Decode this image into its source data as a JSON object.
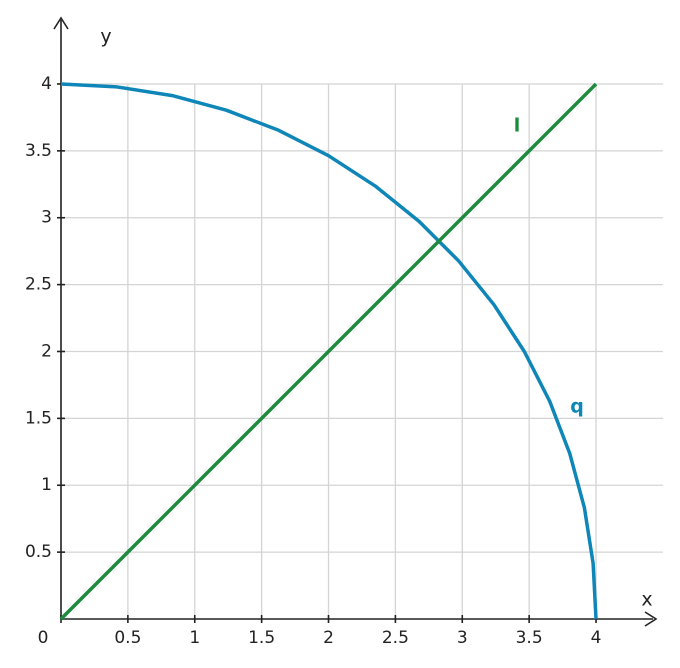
{
  "chart_data": {
    "type": "line",
    "xlabel": "x",
    "ylabel": "y",
    "xlim": [
      0,
      4.5
    ],
    "ylim": [
      0,
      4.5
    ],
    "xticks": [
      0,
      0.5,
      1,
      1.5,
      2,
      2.5,
      3,
      3.5,
      4
    ],
    "yticks": [
      0.5,
      1,
      1.5,
      2,
      2.5,
      3,
      3.5,
      4
    ],
    "grid": true,
    "series": [
      {
        "name": "q",
        "color": "#0f86b8",
        "x": [
          0,
          0.418,
          0.832,
          1.236,
          1.627,
          2,
          2.351,
          2.677,
          2.973,
          3.236,
          3.464,
          3.654,
          3.804,
          3.913,
          3.978,
          4
        ],
        "values": [
          4,
          3.978,
          3.913,
          3.804,
          3.654,
          3.464,
          3.236,
          2.973,
          2.677,
          2.351,
          2,
          1.627,
          1.236,
          0.832,
          0.418,
          0
        ]
      },
      {
        "name": "l",
        "color": "#1e8a3e",
        "x": [
          0,
          4
        ],
        "values": [
          0,
          4
        ]
      }
    ]
  }
}
